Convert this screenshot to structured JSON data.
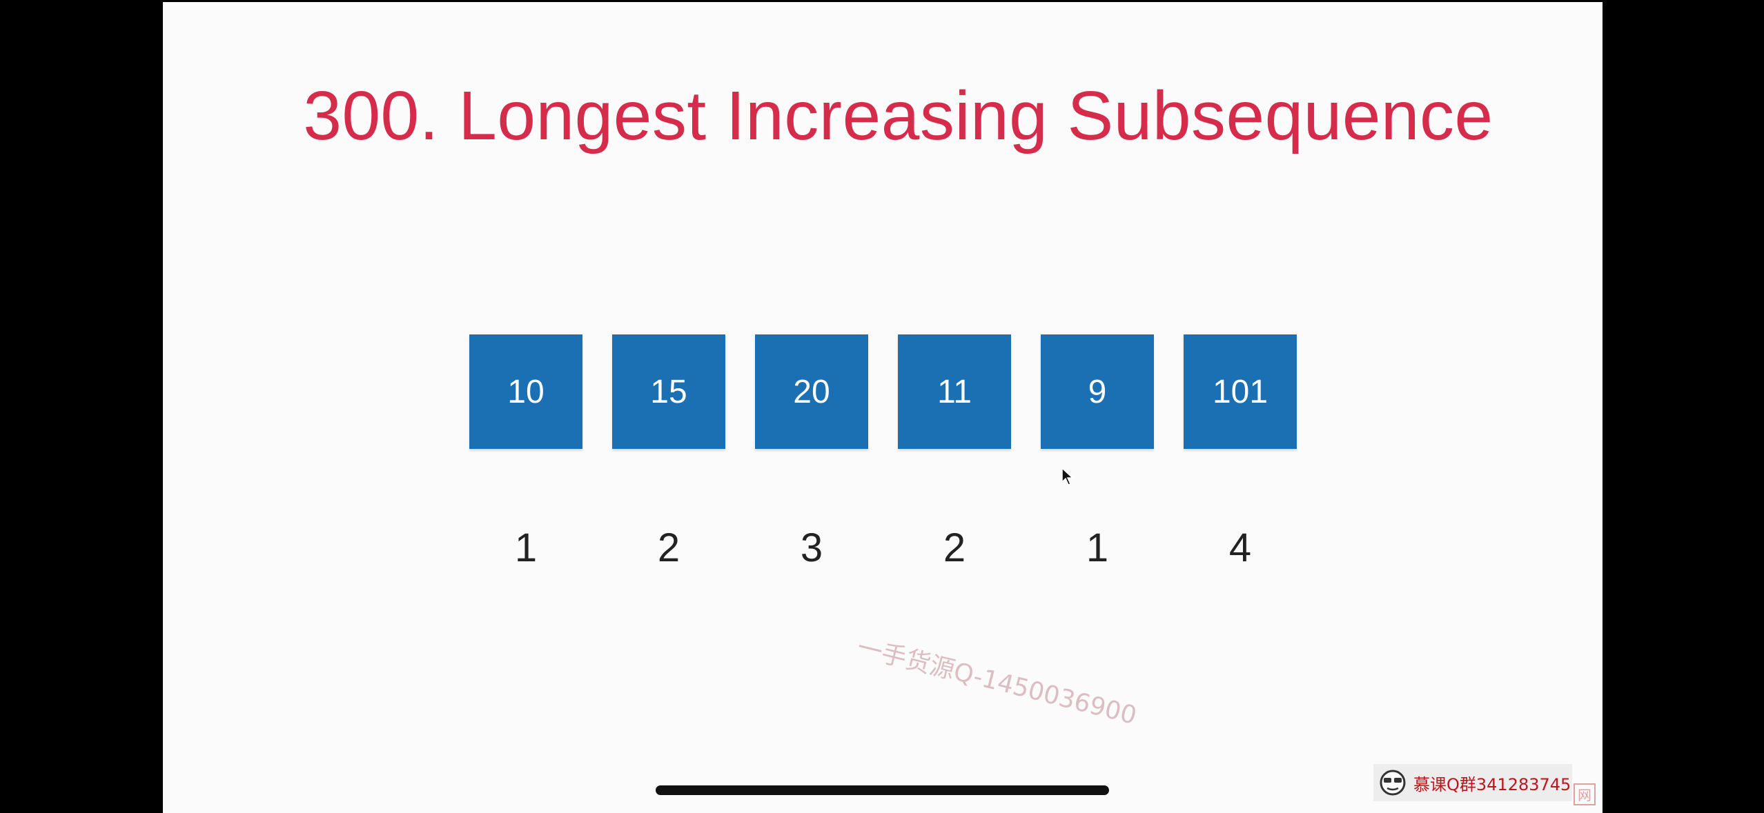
{
  "slide": {
    "title": "300. Longest Increasing Subsequence",
    "title_color": "#d42c4a",
    "box_color": "#1b6fb3",
    "array": [
      "10",
      "15",
      "20",
      "11",
      "9",
      "101"
    ],
    "lis_lengths": [
      "1",
      "2",
      "3",
      "2",
      "1",
      "4"
    ]
  },
  "overlay": {
    "watermark": "一手货源Q-1450036900",
    "badge_text": "慕课Q群341283745",
    "corner_glyph": "网",
    "badge_icon": "mascot-face-icon",
    "cursor_icon": "mouse-pointer-icon"
  }
}
